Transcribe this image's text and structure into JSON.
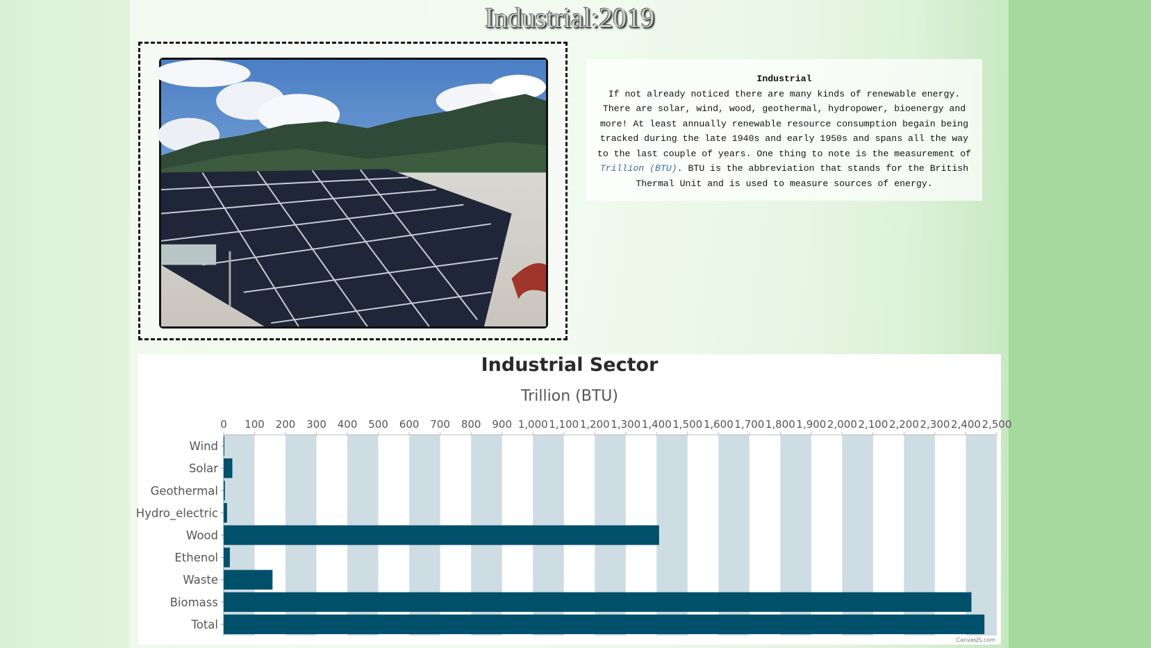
{
  "page": {
    "title": "Industrial:2019"
  },
  "photo": {
    "alt_subject": "solar-panels-photo"
  },
  "info": {
    "title": "Industrial",
    "text_before_link": "If not already noticed there are many kinds of renewable energy. There are solar, wind, wood, geothermal, hydropower, bioenergy and more! At least annually renewable resource consumption begain being tracked during the late 1940s and early 1950s and spans all the way to the last couple of years. One thing to note is the measurement of ",
    "link_text": "Trillion (BTU)",
    "text_after_link": ". BTU is the abbreviation that stands for the British Thermal Unit and is used to measure sources of energy."
  },
  "chart_data": {
    "type": "bar",
    "orientation": "horizontal",
    "title": "Industrial Sector",
    "subtitle": "Trillion (BTU)",
    "categories": [
      "Wind",
      "Solar",
      "Geothermal",
      "Hydro_electric",
      "Wood",
      "Ethenol",
      "Waste",
      "Biomass",
      "Total"
    ],
    "values": [
      1,
      28,
      4,
      11,
      1408,
      20,
      158,
      2418,
      2460
    ],
    "xlim": [
      0,
      2500
    ],
    "tick_step": 100,
    "tick_labels": [
      "0",
      "100",
      "200",
      "300",
      "400",
      "500",
      "600",
      "700",
      "800",
      "900",
      "1,000",
      "1,100",
      "1,200",
      "1,300",
      "1,400",
      "1,500",
      "1,600",
      "1,700",
      "1,800",
      "1,900",
      "2,000",
      "2,100",
      "2,200",
      "2,300",
      "2,400",
      "2,500"
    ],
    "bar_color": "#00506b",
    "band_color": "#cddde3",
    "grid": true,
    "credit": "CanvasJS.com"
  },
  "colors": {
    "bar": "#00506b",
    "band": "#cddde3",
    "link": "#3a6ea5"
  }
}
